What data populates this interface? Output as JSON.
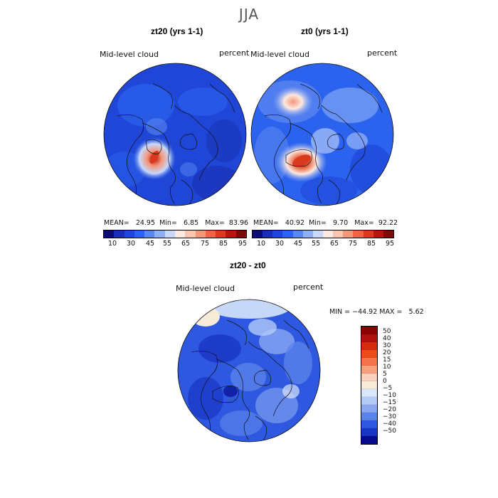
{
  "figure": {
    "title": "JJA"
  },
  "panels": [
    {
      "title": "zt20 (yrs 1-1)",
      "variable": "Mid-level cloud",
      "units": "percent",
      "stats": {
        "mean_label": "MEAN=",
        "mean": "24.95",
        "min_label": "Min=",
        "min": "6.85",
        "max_label": "Max=",
        "max": "83.96"
      },
      "colorbar_ticks": [
        "10",
        "30",
        "45",
        "55",
        "65",
        "75",
        "85",
        "95"
      ]
    },
    {
      "title": "zt0 (yrs 1-1)",
      "variable": "Mid-level cloud",
      "units": "percent",
      "stats": {
        "mean_label": "MEAN=",
        "mean": "40.92",
        "min_label": "Min=",
        "min": "9.70",
        "max_label": "Max=",
        "max": "92.22"
      },
      "colorbar_ticks": [
        "10",
        "30",
        "45",
        "55",
        "65",
        "75",
        "85",
        "95"
      ]
    }
  ],
  "diff_panel": {
    "title": "zt20 - zt0",
    "variable": "Mid-level cloud",
    "units": "percent",
    "minmax_text": "MIN = −44.92 MAX =   5.62",
    "colorbar_ticks": [
      "50",
      "40",
      "30",
      "20",
      "15",
      "10",
      "5",
      "0",
      "−5",
      "−10",
      "−15",
      "−20",
      "−30",
      "−40",
      "−50"
    ]
  },
  "colors": {
    "abs_scale": [
      "#0a0a7a",
      "#1a2fb0",
      "#1f46d6",
      "#2b62ee",
      "#5a86f0",
      "#8fb0f5",
      "#c7d8fb",
      "#fde9df",
      "#f9c5ad",
      "#f3967a",
      "#ea6745",
      "#d93a1d",
      "#b2180f",
      "#7e0a08"
    ],
    "diff_scale": [
      "#8a0000",
      "#b01010",
      "#d62a0c",
      "#ee4a1a",
      "#f4734a",
      "#f7a07e",
      "#fbd0bc",
      "#f6ead8",
      "#d8e6fb",
      "#b3cbf7",
      "#8aa9f1",
      "#5a83ea",
      "#2e58e0",
      "#1a36c4",
      "#070b8e"
    ],
    "map_bg": "#2148de",
    "coast": "#111111"
  }
}
